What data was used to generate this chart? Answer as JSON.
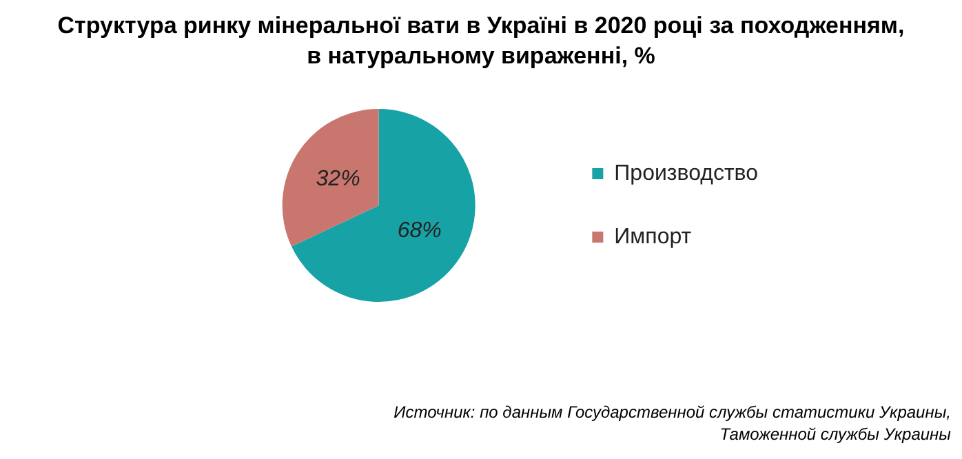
{
  "chart_data": {
    "type": "pie",
    "title": "Структура ринку мінеральної вати в Україні в 2020 році за походженням, в натуральному вираженні, %",
    "categories": [
      "Производство",
      "Импорт"
    ],
    "values": [
      68,
      32
    ],
    "colors": [
      "#17a2a6",
      "#c8766e"
    ],
    "value_labels": [
      "68%",
      "32%"
    ],
    "legend": "right",
    "annotations": [
      "Источник: по данным Государственной службы статистики Украины, Таможенной службы Украины"
    ]
  }
}
